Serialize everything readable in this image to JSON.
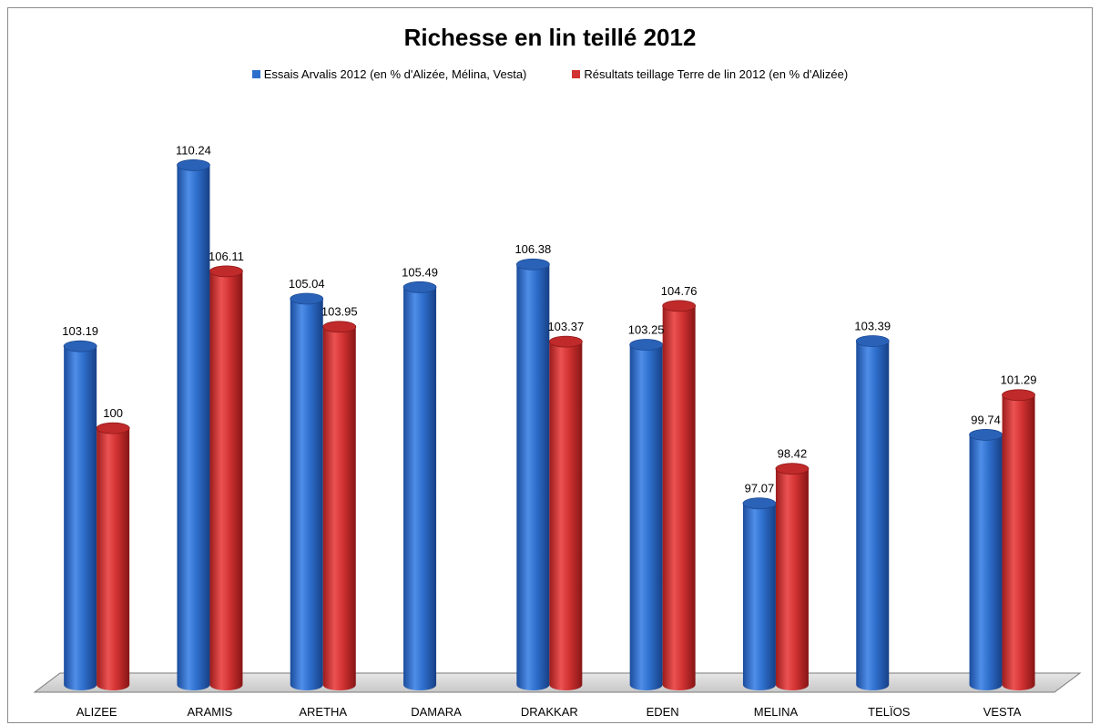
{
  "chart_data": {
    "type": "bar",
    "title": "Richesse en lin teillé 2012",
    "categories": [
      "ALIZEE",
      "ARAMIS",
      "ARETHA",
      "DAMARA",
      "DRAKKAR",
      "EDEN",
      "MELINA",
      "TELÏOS",
      "VESTA"
    ],
    "series": [
      {
        "name": "Essais Arvalis 2012 (en % d'Alizée, Mélina, Vesta)",
        "color": "#2e6fcc",
        "values": [
          103.19,
          110.24,
          105.04,
          105.49,
          106.38,
          103.25,
          97.07,
          103.39,
          99.74
        ],
        "labels": [
          "103.19",
          "110.24",
          "105.04",
          "105.49",
          "106.38",
          "103.25",
          "97.07",
          "103.39",
          "99.74"
        ]
      },
      {
        "name": "Résultats teillage Terre de lin 2012 (en % d'Alizée)",
        "color": "#d23232",
        "values": [
          100,
          106.11,
          103.95,
          null,
          103.37,
          104.76,
          98.42,
          null,
          101.29
        ],
        "labels": [
          "100",
          "106.11",
          "103.95",
          "",
          "103.37",
          "104.76",
          "98.42",
          "",
          "101.29"
        ]
      }
    ],
    "xlabel": "",
    "ylabel": "",
    "ylim": [
      90,
      111
    ],
    "grid": false,
    "legend_position": "top"
  }
}
